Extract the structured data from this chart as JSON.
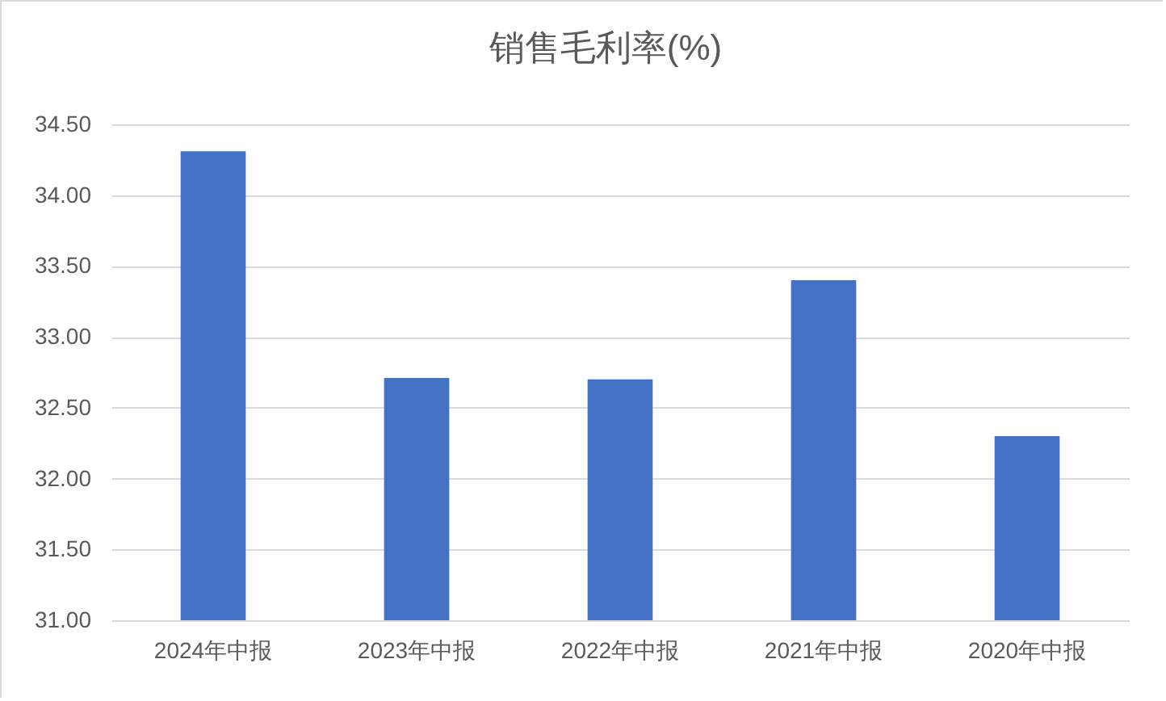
{
  "chart_data": {
    "type": "bar",
    "title": "销售毛利率(%)",
    "categories": [
      "2024年中报",
      "2023年中报",
      "2022年中报",
      "2021年中报",
      "2020年中报"
    ],
    "values": [
      34.31,
      32.71,
      32.7,
      33.4,
      32.3
    ],
    "color": "#4472c4",
    "ylim": [
      31,
      34.5
    ],
    "yticks": [
      {
        "value": 31,
        "label": "31.00"
      },
      {
        "value": 31.5,
        "label": "31.50"
      },
      {
        "value": 32,
        "label": "32.00"
      },
      {
        "value": 32.5,
        "label": "32.50"
      },
      {
        "value": 33,
        "label": "33.00"
      },
      {
        "value": 33.5,
        "label": "33.50"
      },
      {
        "value": 34,
        "label": "34.00"
      },
      {
        "value": 34.5,
        "label": "34.50"
      }
    ],
    "grid": "y"
  }
}
